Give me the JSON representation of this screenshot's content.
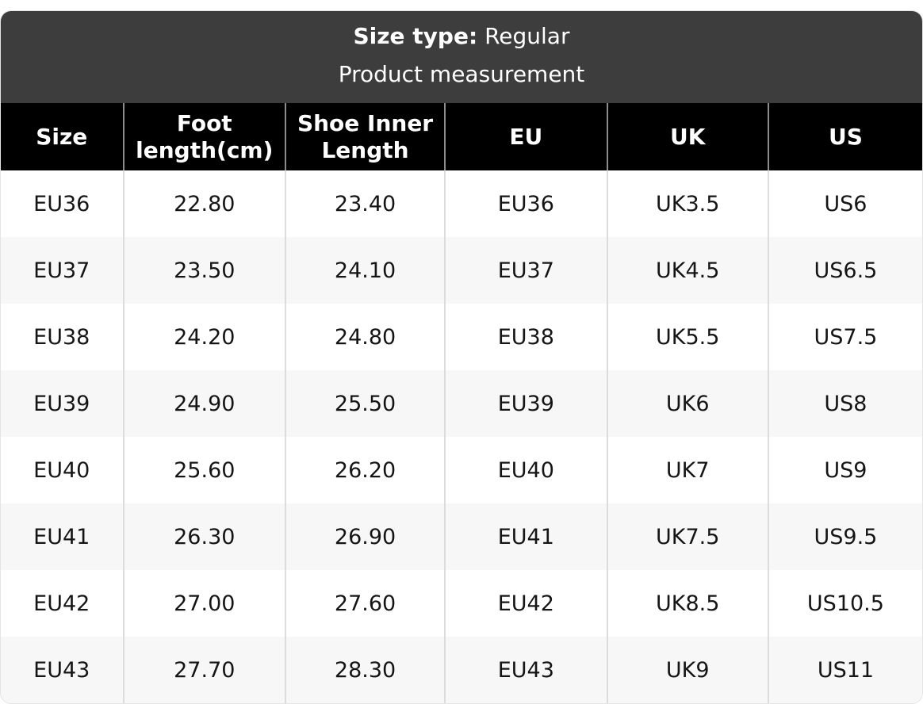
{
  "header": {
    "size_type_label": "Size type:",
    "size_type_value": "Regular",
    "subtitle": "Product measurement"
  },
  "chart_data": {
    "type": "table",
    "title": "Size type: Regular",
    "subtitle": "Product measurement",
    "columns": [
      "Size",
      "Foot length(cm)",
      "Shoe Inner Length",
      "EU",
      "UK",
      "US"
    ],
    "rows": [
      [
        "EU36",
        "22.80",
        "23.40",
        "EU36",
        "UK3.5",
        "US6"
      ],
      [
        "EU37",
        "23.50",
        "24.10",
        "EU37",
        "UK4.5",
        "US6.5"
      ],
      [
        "EU38",
        "24.20",
        "24.80",
        "EU38",
        "UK5.5",
        "US7.5"
      ],
      [
        "EU39",
        "24.90",
        "25.50",
        "EU39",
        "UK6",
        "US8"
      ],
      [
        "EU40",
        "25.60",
        "26.20",
        "EU40",
        "UK7",
        "US9"
      ],
      [
        "EU41",
        "26.30",
        "26.90",
        "EU41",
        "UK7.5",
        "US9.5"
      ],
      [
        "EU42",
        "27.00",
        "27.60",
        "EU42",
        "UK8.5",
        "US10.5"
      ],
      [
        "EU43",
        "27.70",
        "28.30",
        "EU43",
        "UK9",
        "US11"
      ]
    ]
  },
  "colors": {
    "title_band_bg": "#3d3d3d",
    "column_header_bg": "#000000",
    "row_bg": "#ffffff",
    "row_alt_bg": "#f7f7f7",
    "body_divider": "#dcdcdc",
    "header_divider": "#8c8c8c",
    "text": "#151515",
    "header_text": "#ffffff"
  }
}
